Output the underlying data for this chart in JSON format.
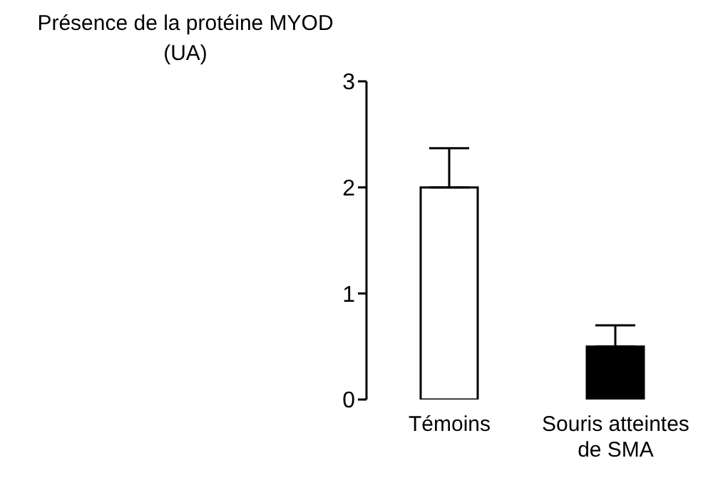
{
  "chart_data": {
    "type": "bar",
    "ylabel": "Présence de la protéine MYOD (UA)",
    "categories": [
      "Témoins",
      "Souris atteintes de SMA"
    ],
    "values": [
      2,
      0.5
    ],
    "colors": [
      "#ffffff",
      "#000000"
    ],
    "errors": [
      [
        2,
        2.37
      ],
      [
        0.5,
        0.7
      ]
    ],
    "ylim": [
      0,
      3
    ],
    "yticks": [
      0,
      1,
      2,
      3
    ],
    "grid": false,
    "legend": false
  }
}
